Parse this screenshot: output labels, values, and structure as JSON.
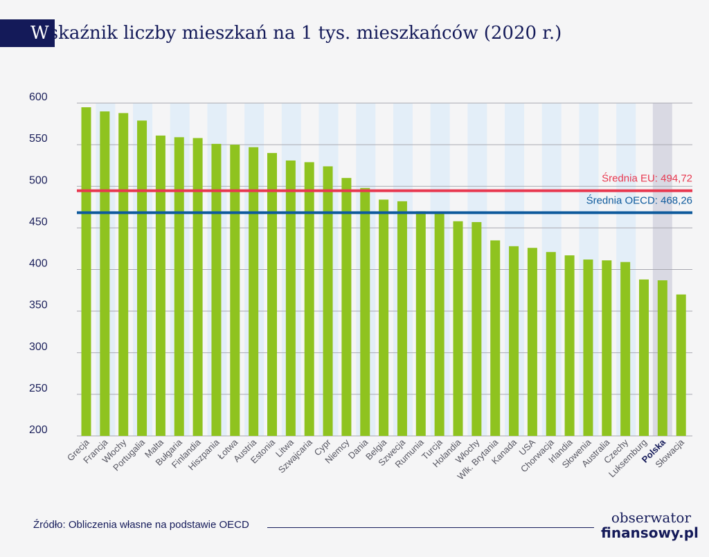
{
  "title": {
    "first_letter": "W",
    "rest": "skaźnik liczby mieszkań na 1 tys. mieszkańców (2020 r.)"
  },
  "chart_data": {
    "type": "bar",
    "title": "Wskaźnik liczby mieszkań na 1 tys. mieszkańców (2020 r.)",
    "xlabel": "",
    "ylabel": "",
    "ylim": [
      200,
      600
    ],
    "yticks": [
      200,
      250,
      300,
      350,
      400,
      450,
      500,
      550,
      600
    ],
    "grid": "horizontal",
    "categories": [
      "Grecja",
      "Francja",
      "Włochy",
      "Portugalia",
      "Malta",
      "Bułgaria",
      "Finlandia",
      "Hiszpania",
      "Łotwa",
      "Austria",
      "Estonia",
      "Litwa",
      "Szwajcaria",
      "Cypr",
      "Niemcy",
      "Dania",
      "Belgia",
      "Szwecja",
      "Rumunia",
      "Turcja",
      "Holandia",
      "Włochy",
      "Wlk. Brytania",
      "Kanada",
      "USA",
      "Chorwacja",
      "Irlandia",
      "Słowenia",
      "Australia",
      "Czechy",
      "Luksemburg",
      "Polska",
      "Słowacja"
    ],
    "values": [
      595,
      590,
      588,
      579,
      561,
      559,
      558,
      551,
      550,
      547,
      540,
      531,
      529,
      524,
      510,
      498,
      484,
      482,
      470,
      468,
      458,
      457,
      435,
      428,
      426,
      421,
      417,
      412,
      411,
      409,
      388,
      387,
      370
    ],
    "highlight_category": "Polska",
    "reference_lines": [
      {
        "label": "Średnia EU:  494,72",
        "value": 494.72,
        "color": "#e8384f"
      },
      {
        "label": "Średnia OECD: 468,26",
        "value": 468.26,
        "color": "#0e5a9c"
      }
    ],
    "colors": {
      "bar": "#8fc31f",
      "stripe": "#e3eef8",
      "highlight_stripe": "#d9d9e3",
      "grid": "#a8a8b0",
      "tick_text": "#1a1f5a",
      "label_text": "#555560",
      "highlight_label": "#141a59"
    }
  },
  "footer": {
    "source": "Źródło: Obliczenia własne na podstawie OECD",
    "logo_line1": "obserwator",
    "logo_line2": "finansowy.pl"
  }
}
